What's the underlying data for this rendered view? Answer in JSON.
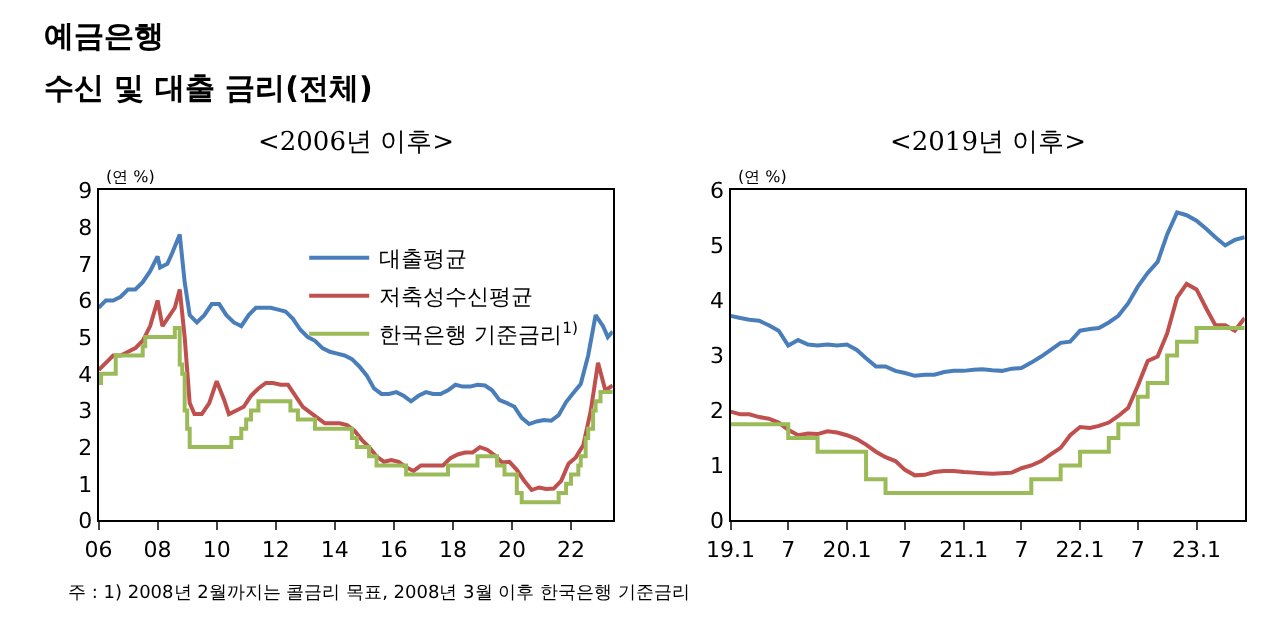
{
  "chart_data": [
    {
      "type": "line",
      "title": "<2006년 이후>",
      "ylabel": "(연 %)",
      "annotations": [
        "예금은행",
        "수신 및 대출 금리(전체)",
        "주 : 1) 2008년 2월까지는 콜금리 목표, 2008년 3월 이후 한국은행 기준금리"
      ],
      "xlim": [
        "2006-01",
        "2023-06"
      ],
      "xticks": [
        {
          "value": "2006-01",
          "label": "06"
        },
        {
          "value": "2008-01",
          "label": "08"
        },
        {
          "value": "2010-01",
          "label": "10"
        },
        {
          "value": "2012-01",
          "label": "12"
        },
        {
          "value": "2014-01",
          "label": "14"
        },
        {
          "value": "2016-01",
          "label": "16"
        },
        {
          "value": "2018-01",
          "label": "18"
        },
        {
          "value": "2020-01",
          "label": "20"
        },
        {
          "value": "2022-01",
          "label": "22"
        }
      ],
      "ylim": [
        0,
        9
      ],
      "yticks": [
        0,
        1,
        2,
        3,
        4,
        5,
        6,
        7,
        8,
        9
      ],
      "grid": false,
      "legend": "top right",
      "series": [
        {
          "name": "대출평균",
          "color": "#4a7ebb",
          "x": [
            "2006-01",
            "2006-04",
            "2006-07",
            "2006-10",
            "2007-01",
            "2007-04",
            "2007-07",
            "2007-10",
            "2008-01",
            "2008-02",
            "2008-05",
            "2008-07",
            "2008-10",
            "2008-12",
            "2009-02",
            "2009-05",
            "2009-08",
            "2009-11",
            "2010-02",
            "2010-05",
            "2010-08",
            "2010-11",
            "2011-02",
            "2011-05",
            "2011-08",
            "2011-11",
            "2012-02",
            "2012-05",
            "2012-08",
            "2012-11",
            "2013-02",
            "2013-05",
            "2013-08",
            "2013-11",
            "2014-02",
            "2014-05",
            "2014-08",
            "2014-11",
            "2015-02",
            "2015-05",
            "2015-08",
            "2015-11",
            "2016-02",
            "2016-05",
            "2016-08",
            "2016-11",
            "2017-02",
            "2017-05",
            "2017-08",
            "2017-11",
            "2018-02",
            "2018-05",
            "2018-08",
            "2018-11",
            "2019-02",
            "2019-05",
            "2019-08",
            "2019-11",
            "2020-02",
            "2020-05",
            "2020-08",
            "2020-11",
            "2021-02",
            "2021-05",
            "2021-08",
            "2021-11",
            "2022-02",
            "2022-05",
            "2022-08",
            "2022-11",
            "2023-02",
            "2023-04",
            "2023-06"
          ],
          "values": [
            5.8,
            6.0,
            6.0,
            6.1,
            6.3,
            6.3,
            6.5,
            6.8,
            7.2,
            6.9,
            7.0,
            7.3,
            7.8,
            6.5,
            5.6,
            5.4,
            5.6,
            5.9,
            5.9,
            5.6,
            5.4,
            5.3,
            5.6,
            5.8,
            5.8,
            5.8,
            5.75,
            5.7,
            5.5,
            5.2,
            5.0,
            4.9,
            4.7,
            4.6,
            4.55,
            4.5,
            4.4,
            4.2,
            3.95,
            3.6,
            3.45,
            3.45,
            3.5,
            3.4,
            3.25,
            3.4,
            3.5,
            3.45,
            3.45,
            3.55,
            3.7,
            3.65,
            3.65,
            3.7,
            3.68,
            3.55,
            3.28,
            3.2,
            3.1,
            2.8,
            2.63,
            2.7,
            2.74,
            2.72,
            2.87,
            3.23,
            3.48,
            3.72,
            4.5,
            5.6,
            5.3,
            5.0,
            5.15
          ]
        },
        {
          "name": "저축성수신평균",
          "color": "#c0504d",
          "x": [
            "2006-01",
            "2006-04",
            "2006-07",
            "2006-10",
            "2007-01",
            "2007-04",
            "2007-07",
            "2007-10",
            "2008-01",
            "2008-03",
            "2008-06",
            "2008-08",
            "2008-10",
            "2008-12",
            "2009-02",
            "2009-04",
            "2009-07",
            "2009-10",
            "2010-01",
            "2010-04",
            "2010-06",
            "2010-09",
            "2010-12",
            "2011-03",
            "2011-06",
            "2011-09",
            "2011-12",
            "2012-03",
            "2012-06",
            "2012-09",
            "2012-12",
            "2013-03",
            "2013-06",
            "2013-09",
            "2013-12",
            "2014-03",
            "2014-06",
            "2014-09",
            "2014-12",
            "2015-03",
            "2015-06",
            "2015-09",
            "2015-12",
            "2016-03",
            "2016-06",
            "2016-09",
            "2016-12",
            "2017-03",
            "2017-06",
            "2017-09",
            "2017-12",
            "2018-03",
            "2018-06",
            "2018-09",
            "2018-12",
            "2019-03",
            "2019-06",
            "2019-09",
            "2019-12",
            "2020-03",
            "2020-06",
            "2020-09",
            "2020-12",
            "2021-03",
            "2021-06",
            "2021-09",
            "2021-12",
            "2022-03",
            "2022-06",
            "2022-09",
            "2022-12",
            "2023-03",
            "2023-06"
          ],
          "values": [
            4.1,
            4.3,
            4.5,
            4.5,
            4.6,
            4.7,
            4.9,
            5.3,
            6.0,
            5.3,
            5.6,
            5.8,
            6.3,
            5.0,
            3.2,
            2.9,
            2.9,
            3.2,
            3.8,
            3.3,
            2.9,
            3.0,
            3.1,
            3.4,
            3.6,
            3.75,
            3.75,
            3.7,
            3.7,
            3.4,
            3.1,
            2.95,
            2.8,
            2.65,
            2.65,
            2.65,
            2.6,
            2.45,
            2.2,
            2.0,
            1.75,
            1.6,
            1.65,
            1.6,
            1.45,
            1.35,
            1.5,
            1.5,
            1.5,
            1.5,
            1.7,
            1.8,
            1.85,
            1.85,
            2.0,
            1.93,
            1.78,
            1.58,
            1.6,
            1.38,
            1.08,
            0.83,
            0.9,
            0.86,
            0.87,
            1.08,
            1.55,
            1.72,
            2.05,
            2.98,
            4.3,
            3.55,
            3.68
          ]
        },
        {
          "name": "한국은행 기준금리$^{1)}$",
          "color": "#9bbb59",
          "type": "step",
          "x": [
            "2006-01",
            "2006-02",
            "2006-08",
            "2007-07",
            "2007-08",
            "2008-08",
            "2008-10",
            "2008-11",
            "2008-12",
            "2009-01",
            "2009-02",
            "2010-07",
            "2010-11",
            "2011-01",
            "2011-03",
            "2011-06",
            "2012-07",
            "2012-10",
            "2013-05",
            "2014-08",
            "2014-10",
            "2015-03",
            "2015-06",
            "2016-06",
            "2017-11",
            "2018-11",
            "2019-07",
            "2019-10",
            "2020-03",
            "2020-05",
            "2021-08",
            "2021-11",
            "2022-01",
            "2022-04",
            "2022-05",
            "2022-07",
            "2022-08",
            "2022-10",
            "2022-11",
            "2023-01",
            "2023-06"
          ],
          "values": [
            3.75,
            4.0,
            4.5,
            4.75,
            5.0,
            5.25,
            4.25,
            4.0,
            3.0,
            2.5,
            2.0,
            2.25,
            2.5,
            2.75,
            3.0,
            3.25,
            3.0,
            2.75,
            2.5,
            2.25,
            2.0,
            1.75,
            1.5,
            1.25,
            1.5,
            1.75,
            1.5,
            1.25,
            0.75,
            0.5,
            0.75,
            1.0,
            1.25,
            1.5,
            1.75,
            2.25,
            2.5,
            3.0,
            3.25,
            3.5,
            3.5
          ]
        }
      ]
    },
    {
      "type": "line",
      "title": "<2019년 이후>",
      "ylabel": "(연 %)",
      "x": [
        "2019-01",
        "2019-02",
        "2019-03",
        "2019-04",
        "2019-05",
        "2019-06",
        "2019-07",
        "2019-08",
        "2019-09",
        "2019-10",
        "2019-11",
        "2019-12",
        "2020-01",
        "2020-02",
        "2020-03",
        "2020-04",
        "2020-05",
        "2020-06",
        "2020-07",
        "2020-08",
        "2020-09",
        "2020-10",
        "2020-11",
        "2020-12",
        "2021-01",
        "2021-02",
        "2021-03",
        "2021-04",
        "2021-05",
        "2021-06",
        "2021-07",
        "2021-08",
        "2021-09",
        "2021-10",
        "2021-11",
        "2021-12",
        "2022-01",
        "2022-02",
        "2022-03",
        "2022-04",
        "2022-05",
        "2022-06",
        "2022-07",
        "2022-08",
        "2022-09",
        "2022-10",
        "2022-11",
        "2022-12",
        "2023-01",
        "2023-02",
        "2023-03",
        "2023-04",
        "2023-05",
        "2023-06"
      ],
      "xlim": [
        "2019-01",
        "2023-06"
      ],
      "xticks": [
        {
          "value": "2019-01",
          "label": "19.1"
        },
        {
          "value": "2019-07",
          "label": "7"
        },
        {
          "value": "2020-01",
          "label": "20.1"
        },
        {
          "value": "2020-07",
          "label": "7"
        },
        {
          "value": "2021-01",
          "label": "21.1"
        },
        {
          "value": "2021-07",
          "label": "7"
        },
        {
          "value": "2022-01",
          "label": "22.1"
        },
        {
          "value": "2022-07",
          "label": "7"
        },
        {
          "value": "2023-01",
          "label": "23.1"
        }
      ],
      "ylim": [
        0,
        6
      ],
      "yticks": [
        0,
        1,
        2,
        3,
        4,
        5,
        6
      ],
      "grid": false,
      "legend": false,
      "series": [
        {
          "color": "#4a7ebb",
          "values": [
            3.72,
            3.68,
            3.65,
            3.63,
            3.55,
            3.45,
            3.18,
            3.28,
            3.2,
            3.18,
            3.2,
            3.18,
            3.2,
            3.1,
            2.95,
            2.8,
            2.8,
            2.72,
            2.68,
            2.63,
            2.65,
            2.65,
            2.7,
            2.72,
            2.72,
            2.74,
            2.75,
            2.73,
            2.72,
            2.76,
            2.77,
            2.87,
            2.98,
            3.1,
            3.23,
            3.25,
            3.45,
            3.48,
            3.5,
            3.6,
            3.72,
            3.95,
            4.25,
            4.5,
            4.7,
            5.2,
            5.6,
            5.55,
            5.45,
            5.3,
            5.15,
            5.0,
            5.1,
            5.15
          ]
        },
        {
          "color": "#c0504d",
          "values": [
            1.98,
            1.93,
            1.93,
            1.88,
            1.85,
            1.78,
            1.65,
            1.55,
            1.58,
            1.57,
            1.62,
            1.6,
            1.55,
            1.48,
            1.38,
            1.25,
            1.15,
            1.08,
            0.92,
            0.82,
            0.83,
            0.88,
            0.9,
            0.9,
            0.88,
            0.87,
            0.86,
            0.85,
            0.86,
            0.87,
            0.95,
            1.0,
            1.08,
            1.2,
            1.32,
            1.55,
            1.7,
            1.68,
            1.72,
            1.78,
            1.9,
            2.05,
            2.45,
            2.9,
            2.98,
            3.4,
            4.05,
            4.3,
            4.2,
            3.85,
            3.55,
            3.55,
            3.45,
            3.68
          ]
        },
        {
          "color": "#9bbb59",
          "type": "step",
          "values": [
            1.75,
            1.75,
            1.75,
            1.75,
            1.75,
            1.75,
            1.5,
            1.5,
            1.5,
            1.25,
            1.25,
            1.25,
            1.25,
            1.25,
            0.75,
            0.75,
            0.5,
            0.5,
            0.5,
            0.5,
            0.5,
            0.5,
            0.5,
            0.5,
            0.5,
            0.5,
            0.5,
            0.5,
            0.5,
            0.5,
            0.5,
            0.75,
            0.75,
            0.75,
            1.0,
            1.0,
            1.25,
            1.25,
            1.25,
            1.5,
            1.75,
            1.75,
            2.25,
            2.5,
            2.5,
            3.0,
            3.25,
            3.25,
            3.5,
            3.5,
            3.5,
            3.5,
            3.5,
            3.5
          ]
        }
      ]
    }
  ]
}
